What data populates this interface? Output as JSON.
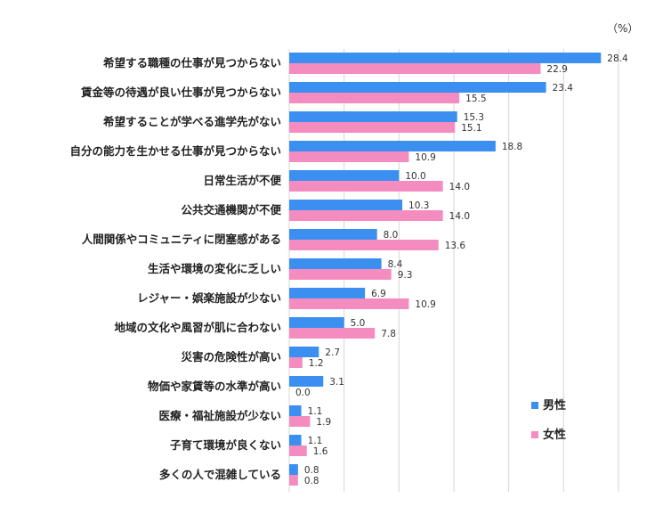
{
  "unit_label": "（%）",
  "colors": {
    "male": "#3a8ff0",
    "female": "#f58cc0"
  },
  "chart_data": {
    "type": "bar",
    "orientation": "horizontal",
    "xlim": [
      0,
      30
    ],
    "grid": true,
    "legend_position": "right",
    "categories": [
      "希望する職種の仕事が見つからない",
      "賃金等の待遇が良い仕事が見つからない",
      "希望することが学べる進学先がない",
      "自分の能力を生かせる仕事が見つからない",
      "日常生活が不便",
      "公共交通機関が不便",
      "人間関係やコミュニティに閉塞感がある",
      "生活や環境の変化に乏しい",
      "レジャー・娯楽施設が少ない",
      "地域の文化や風習が肌に合わない",
      "災害の危険性が高い",
      "物価や家賃等の水準が高い",
      "医療・福祉施設が少ない",
      "子育て環境が良くない",
      "多くの人で混雑している"
    ],
    "series": [
      {
        "name": "男性",
        "values": [
          28.4,
          23.4,
          15.3,
          18.8,
          10.0,
          10.3,
          8.0,
          8.4,
          6.9,
          5.0,
          2.7,
          3.1,
          1.1,
          1.1,
          0.8
        ],
        "labels": [
          "28.4",
          "23.4",
          "15.3",
          "18.8",
          "10.0",
          "10.3",
          "8.0",
          "8.4",
          "6.9",
          "5.0",
          "2.7",
          "3.1",
          "1.1",
          "1.1",
          "0.8"
        ]
      },
      {
        "name": "女性",
        "values": [
          22.9,
          15.5,
          15.1,
          10.9,
          14.0,
          14.0,
          13.6,
          9.3,
          10.9,
          7.8,
          1.2,
          0.0,
          1.9,
          1.6,
          0.8
        ],
        "labels": [
          "22.9",
          "15.5",
          "15.1",
          "10.9",
          "14.0",
          "14.0",
          "13.6",
          "9.3",
          "10.9",
          "7.8",
          "1.2",
          "0.0",
          "1.9",
          "1.6",
          "0.8"
        ]
      }
    ]
  }
}
